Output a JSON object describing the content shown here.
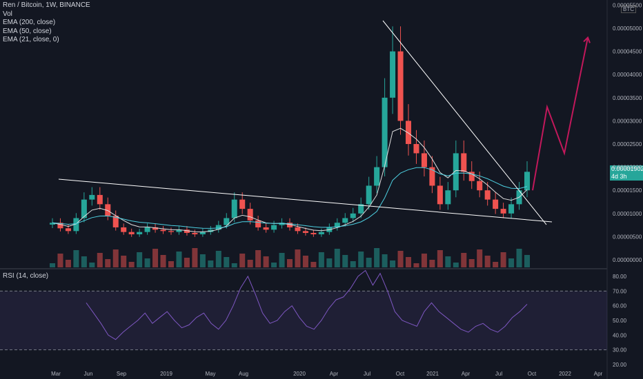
{
  "legend": {
    "title": "Ren / Bitcoin, 1W, BINANCE",
    "vol": "Vol",
    "ema200": "EMA (200, close)",
    "ema50": "EMA (50, close)",
    "ema21": "EMA (21, close, 0)",
    "rsi": "RSI (14, close)"
  },
  "price_tag": {
    "value": "0.00001902",
    "countdown": "4d 3h"
  },
  "unit_label": "BTC",
  "colors": {
    "bg": "#131722",
    "up": "#26a69a",
    "down": "#ef5350",
    "rsi": "#7e57c2",
    "arrow": "#c2185b"
  },
  "chart_data": [
    {
      "type": "candlestick",
      "title": "Ren / Bitcoin, 1W, BINANCE",
      "y_ticks": [
        "0.00000000",
        "0.00000500",
        "0.00001000",
        "0.00001500",
        "0.00002000",
        "0.00002500",
        "0.00003000",
        "0.00003500",
        "0.00004000",
        "0.00004500",
        "0.00005000",
        "0.00005500"
      ],
      "ylim": [
        0,
        5.55e-05
      ],
      "x_ticks": [
        "Mar",
        "Jun",
        "Sep",
        "2019",
        "May",
        "Aug",
        "2020",
        "Apr",
        "Jul",
        "Oct",
        "2021",
        "Apr",
        "Jul",
        "Oct",
        "2022",
        "Apr"
      ],
      "close_series_approx": [
        8e-06,
        6.8e-06,
        6.2e-06,
        9e-06,
        1.3e-05,
        1.4e-05,
        1.2e-05,
        9.5e-06,
        7e-06,
        6e-06,
        5.5e-06,
        6e-06,
        7e-06,
        6.5e-06,
        6.2e-06,
        6e-06,
        6.5e-06,
        5.8e-06,
        5.5e-06,
        6e-06,
        6.5e-06,
        7.5e-06,
        9e-06,
        1.3e-05,
        1.1e-05,
        8.5e-06,
        7e-06,
        6.5e-06,
        7.5e-06,
        8e-06,
        7e-06,
        6.2e-06,
        5.8e-06,
        5.5e-06,
        6e-06,
        7e-06,
        8e-06,
        9e-06,
        1e-05,
        1.2e-05,
        1.6e-05,
        2e-05,
        3.5e-05,
        4.5e-05,
        3e-05,
        2.5e-05,
        2.3e-05,
        2e-05,
        1.6e-05,
        1.2e-05,
        1.5e-05,
        2.3e-05,
        1.9e-05,
        1.7e-05,
        1.5e-05,
        1.3e-05,
        1.1e-05,
        1e-05,
        1.2e-05,
        1.5e-05,
        1.9e-05
      ],
      "trendlines": [
        {
          "name": "descending-resistance",
          "from": [
            "2020-07",
            5.1e-05
          ],
          "to": [
            "2021-10",
            8e-06
          ]
        },
        {
          "name": "descending-support",
          "from": [
            "2018-03",
            1.7e-05
          ],
          "to": [
            "2021-10",
            8.5e-06
          ]
        }
      ],
      "projection_arrow": [
        1.5e-05,
        3.3e-05,
        2.3e-05,
        4.8e-05
      ]
    },
    {
      "type": "line",
      "title": "RSI (14, close)",
      "y_ticks": [
        "20.00",
        "30.00",
        "40.00",
        "50.00",
        "60.00",
        "70.00",
        "80.00"
      ],
      "ylim": [
        20,
        84
      ],
      "band": [
        30,
        70
      ],
      "values": [
        62,
        55,
        48,
        40,
        37,
        42,
        46,
        50,
        55,
        48,
        52,
        56,
        50,
        45,
        47,
        52,
        55,
        48,
        44,
        50,
        60,
        72,
        80,
        68,
        55,
        48,
        50,
        56,
        60,
        52,
        46,
        44,
        50,
        58,
        64,
        66,
        72,
        80,
        84,
        74,
        82,
        70,
        56,
        50,
        48,
        46,
        56,
        62,
        56,
        52,
        48,
        44,
        42,
        46,
        48,
        44,
        42,
        46,
        52,
        56,
        61
      ]
    }
  ]
}
